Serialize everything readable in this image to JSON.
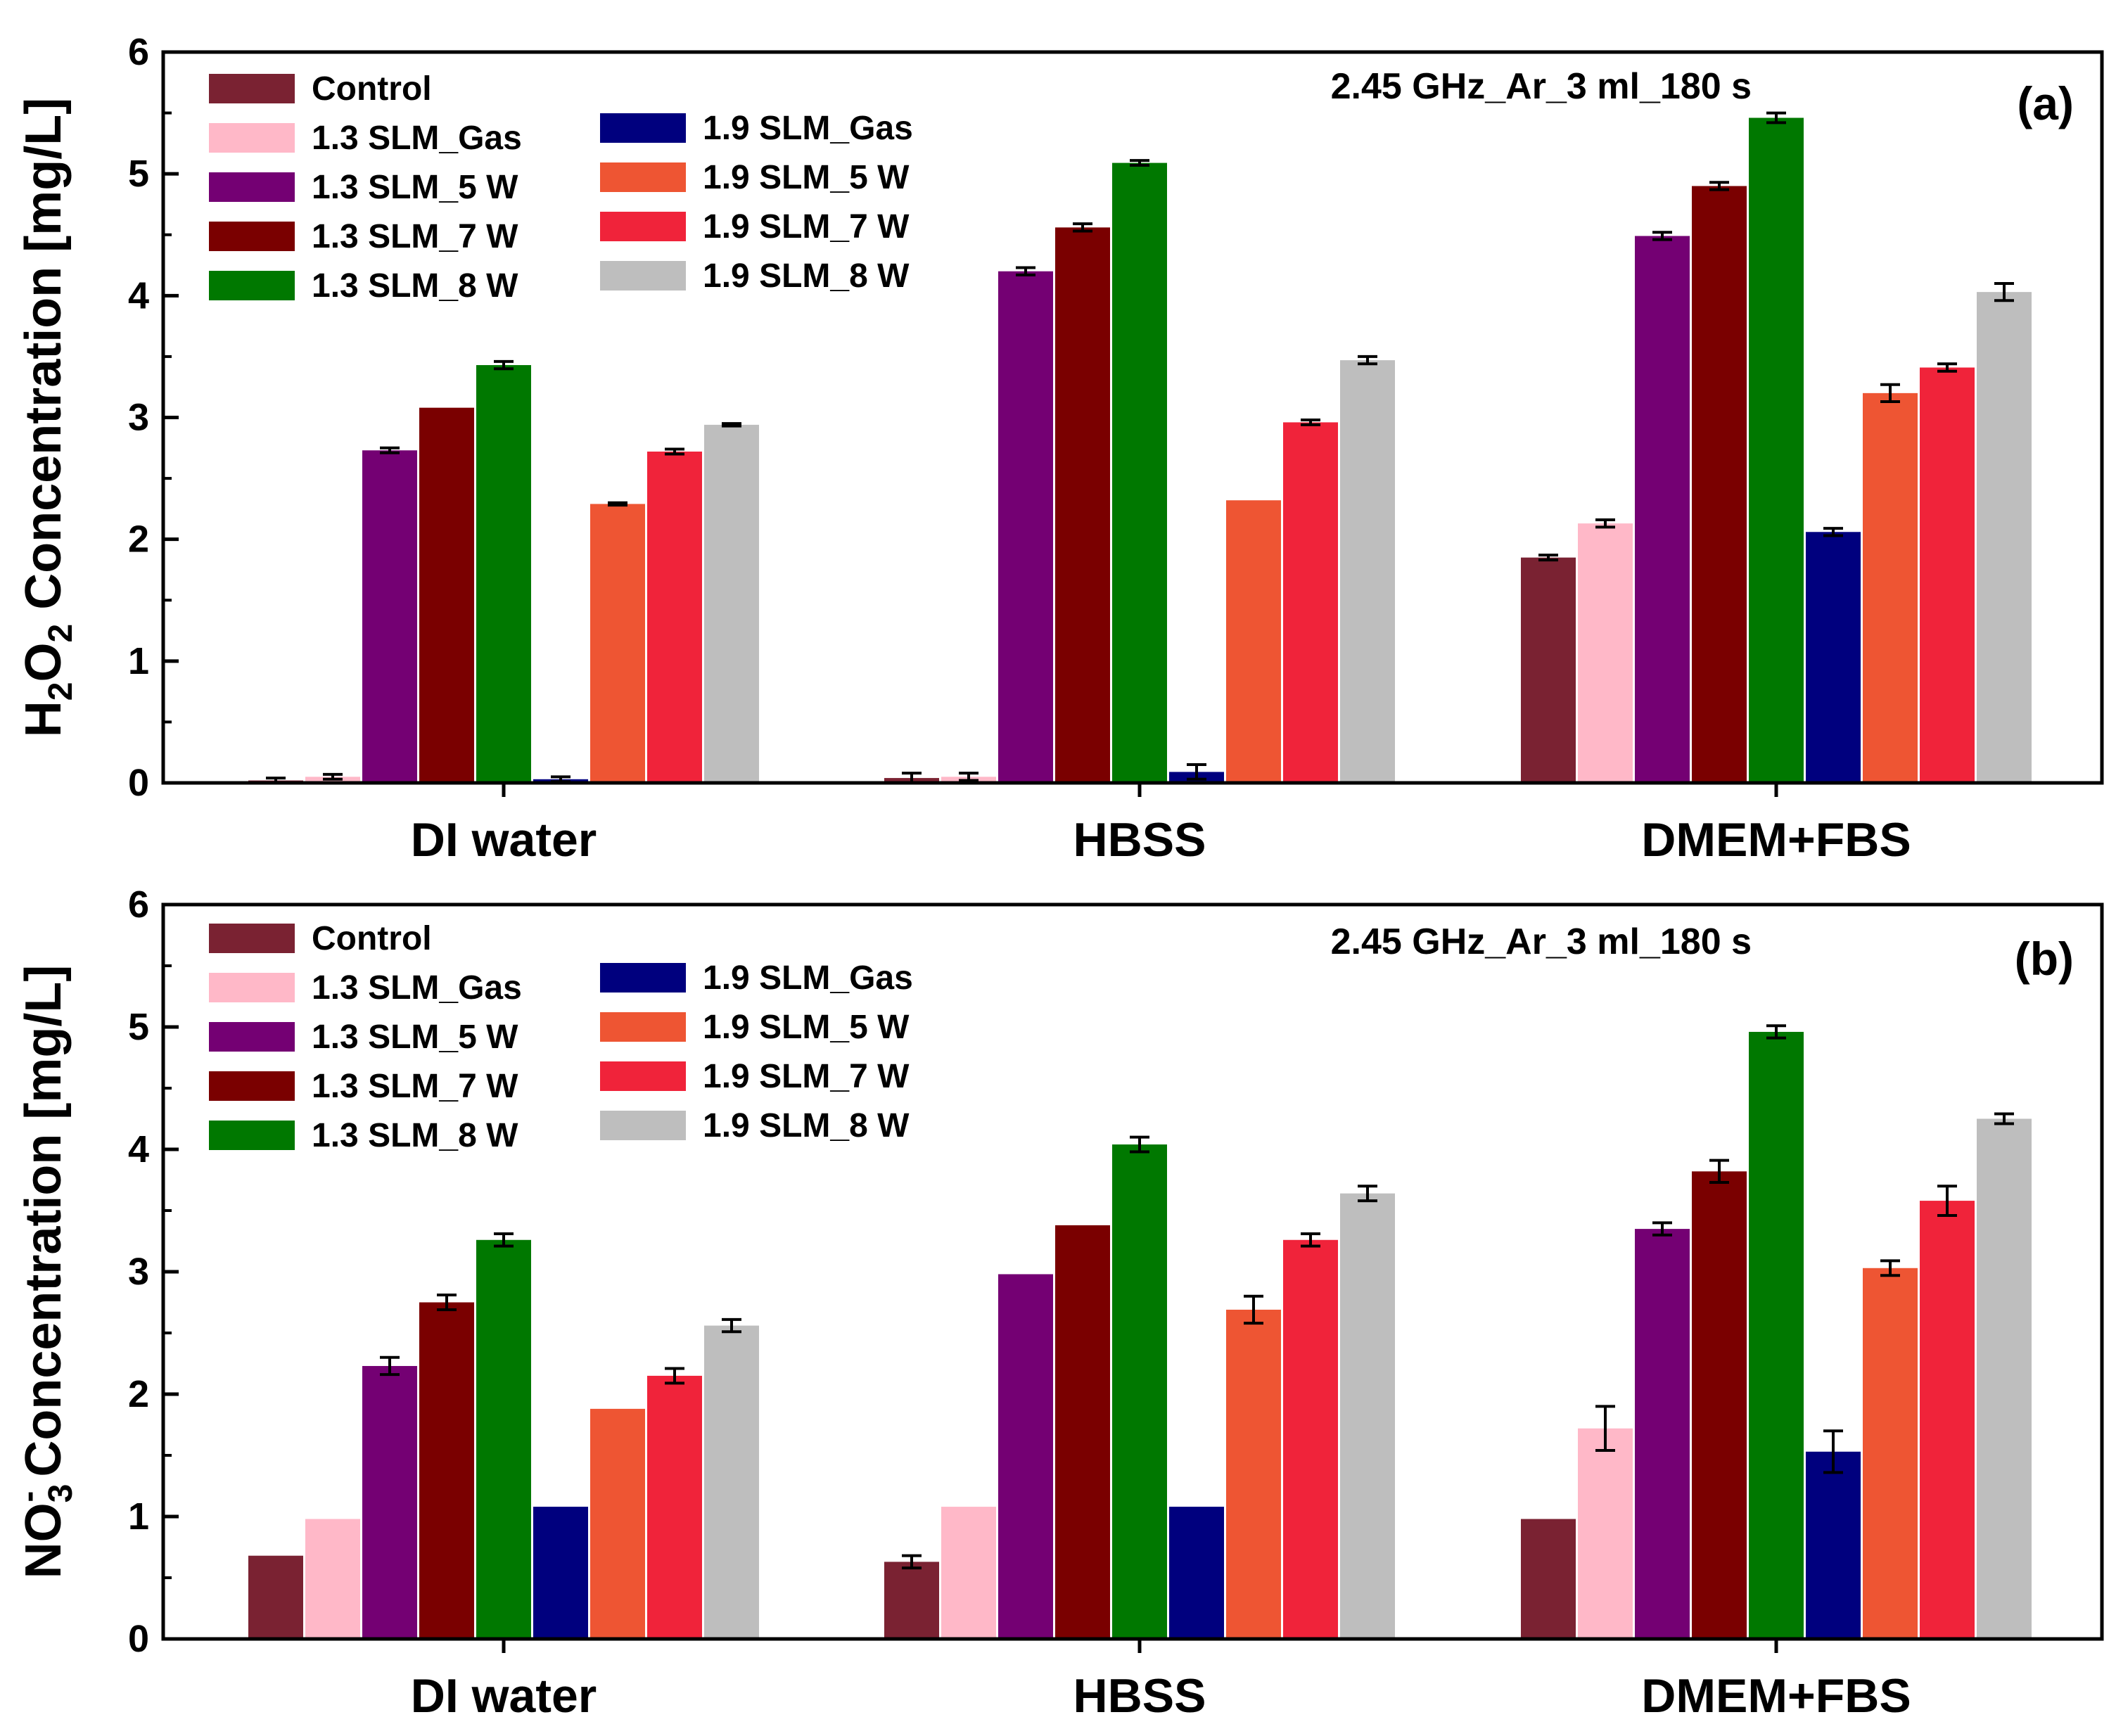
{
  "chart_data": [
    {
      "type": "bar",
      "panel_label": "(a)",
      "annotation": "2.45 GHz_Ar_3 ml_180 s",
      "ylabel_main": "Concentration [mg/L]",
      "ylabel_species": {
        "parts": [
          "H",
          "2",
          "O",
          "2"
        ]
      },
      "ylim": [
        0,
        6
      ],
      "yticks": [
        "0",
        "1",
        "2",
        "3",
        "4",
        "5",
        "6"
      ],
      "categories": [
        "DI water",
        "HBSS",
        "DMEM+FBS"
      ],
      "legend_placement": "top-left",
      "series": [
        {
          "name": "Control",
          "color": "#7a2232",
          "values": [
            0.02,
            0.04,
            1.85
          ],
          "errors": [
            0.02,
            0.04,
            0.02
          ]
        },
        {
          "name": "1.3 SLM_Gas",
          "color": "#ffb8c8",
          "values": [
            0.05,
            0.05,
            2.13
          ],
          "errors": [
            0.02,
            0.03,
            0.03
          ]
        },
        {
          "name": "1.3 SLM_5 W",
          "color": "#740073",
          "values": [
            2.73,
            4.2,
            4.49
          ],
          "errors": [
            0.02,
            0.03,
            0.03
          ]
        },
        {
          "name": "1.3 SLM_7 W",
          "color": "#7a0000",
          "values": [
            3.08,
            4.56,
            4.9
          ],
          "errors": [
            0,
            0.03,
            0.03
          ]
        },
        {
          "name": "1.3 SLM_8 W",
          "color": "#007800",
          "values": [
            3.43,
            5.09,
            5.46
          ],
          "errors": [
            0.03,
            0.02,
            0.04
          ]
        },
        {
          "name": "1.9 SLM_Gas",
          "color": "#00007e",
          "values": [
            0.03,
            0.09,
            2.06
          ],
          "errors": [
            0.02,
            0.06,
            0.03
          ]
        },
        {
          "name": "1.9 SLM_5 W",
          "color": "#ee5533",
          "values": [
            2.29,
            2.32,
            3.2
          ],
          "errors": [
            0.01,
            0,
            0.07
          ]
        },
        {
          "name": "1.9 SLM_7 W",
          "color": "#f0233a",
          "values": [
            2.72,
            2.96,
            3.41
          ],
          "errors": [
            0.02,
            0.02,
            0.03
          ]
        },
        {
          "name": "1.9 SLM_8 W",
          "color": "#bebebe",
          "values": [
            2.94,
            3.47,
            4.03
          ],
          "errors": [
            0.01,
            0.03,
            0.07
          ]
        }
      ]
    },
    {
      "type": "bar",
      "panel_label": "(b)",
      "annotation": "2.45 GHz_Ar_3 ml_180 s",
      "ylabel_main": "Concentration [mg/L]",
      "ylabel_species": {
        "parts": [
          "NO",
          "3",
          "-"
        ]
      },
      "ylim": [
        0,
        6
      ],
      "yticks": [
        "0",
        "1",
        "2",
        "3",
        "4",
        "5",
        "6"
      ],
      "categories": [
        "DI water",
        "HBSS",
        "DMEM+FBS"
      ],
      "legend_placement": "top-left",
      "series": [
        {
          "name": "Control",
          "color": "#7a2232",
          "values": [
            0.68,
            0.63,
            0.98
          ],
          "errors": [
            0,
            0.05,
            0
          ]
        },
        {
          "name": "1.3 SLM_Gas",
          "color": "#ffb8c8",
          "values": [
            0.98,
            1.08,
            1.72
          ],
          "errors": [
            0,
            0,
            0.18
          ]
        },
        {
          "name": "1.3 SLM_5 W",
          "color": "#740073",
          "values": [
            2.23,
            2.98,
            3.35
          ],
          "errors": [
            0.07,
            0,
            0.05
          ]
        },
        {
          "name": "1.3 SLM_7 W",
          "color": "#7a0000",
          "values": [
            2.75,
            3.38,
            3.82
          ],
          "errors": [
            0.06,
            0,
            0.09
          ]
        },
        {
          "name": "1.3 SLM_8 W",
          "color": "#007800",
          "values": [
            3.26,
            4.04,
            4.96
          ],
          "errors": [
            0.05,
            0.06,
            0.05
          ]
        },
        {
          "name": "1.9 SLM_Gas",
          "color": "#00007e",
          "values": [
            1.08,
            1.08,
            1.53
          ],
          "errors": [
            0,
            0,
            0.17
          ]
        },
        {
          "name": "1.9 SLM_5 W",
          "color": "#ee5533",
          "values": [
            1.88,
            2.69,
            3.03
          ],
          "errors": [
            0,
            0.11,
            0.06
          ]
        },
        {
          "name": "1.9 SLM_7 W",
          "color": "#f0233a",
          "values": [
            2.15,
            3.26,
            3.58
          ],
          "errors": [
            0.06,
            0.05,
            0.12
          ]
        },
        {
          "name": "1.9 SLM_8 W",
          "color": "#bebebe",
          "values": [
            2.56,
            3.64,
            4.25
          ],
          "errors": [
            0.05,
            0.06,
            0.04
          ]
        }
      ]
    }
  ]
}
